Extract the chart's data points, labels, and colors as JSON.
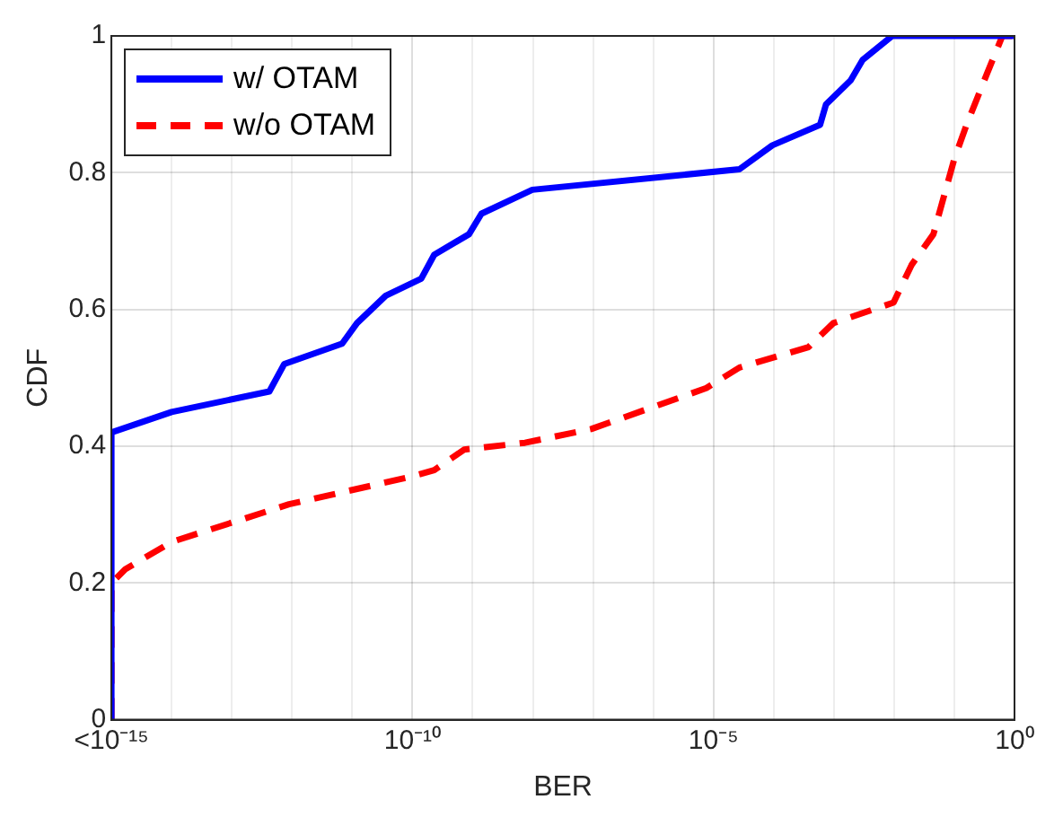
{
  "chart_data": {
    "type": "line",
    "xlabel": "BER",
    "ylabel": "CDF",
    "log": "x",
    "grid": true,
    "legend": "top left",
    "marker": "none",
    "xlim": [
      1e-15,
      1
    ],
    "ylim": [
      0,
      1
    ],
    "xticks": [
      {
        "value": 1e-15,
        "label": "<10⁻¹⁵"
      },
      {
        "value": 1e-14,
        "label": null
      },
      {
        "value": 1e-13,
        "label": null
      },
      {
        "value": 1e-12,
        "label": null
      },
      {
        "value": 1e-11,
        "label": null
      },
      {
        "value": 1e-10,
        "label": "10⁻¹⁰"
      },
      {
        "value": 1e-09,
        "label": null
      },
      {
        "value": 1e-08,
        "label": null
      },
      {
        "value": 1e-07,
        "label": null
      },
      {
        "value": 1e-06,
        "label": null
      },
      {
        "value": 1e-05,
        "label": "10⁻⁵"
      },
      {
        "value": 0.0001,
        "label": null
      },
      {
        "value": 0.001,
        "label": null
      },
      {
        "value": 0.01,
        "label": null
      },
      {
        "value": 0.1,
        "label": null
      },
      {
        "value": 1,
        "label": "10⁰"
      }
    ],
    "yticks": [
      0,
      0.2,
      0.4,
      0.6,
      0.8,
      1
    ],
    "series": [
      {
        "name": "w/ OTAM",
        "color": "#0000ff",
        "line_style": "solid",
        "x": [
          1e-15,
          1e-15,
          1e-14,
          4.2e-13,
          7.4e-13,
          6.8e-12,
          1.2e-11,
          3.6e-11,
          1.4e-10,
          2.3e-10,
          8.7e-10,
          1.4e-09,
          9.8e-09,
          2.7e-05,
          9.5e-05,
          0.00059,
          0.00074,
          0.0019,
          0.003,
          0.0093,
          1
        ],
        "values": [
          0,
          0.42,
          0.45,
          0.48,
          0.52,
          0.55,
          0.58,
          0.62,
          0.645,
          0.68,
          0.71,
          0.74,
          0.775,
          0.805,
          0.84,
          0.87,
          0.9,
          0.935,
          0.965,
          1,
          1
        ]
      },
      {
        "name": "w/o OTAM",
        "color": "#ff0000",
        "line_style": "dashed",
        "x": [
          1e-15,
          1e-15,
          1.7e-15,
          1e-14,
          8.9e-13,
          9.1e-11,
          2.3e-10,
          7.2e-10,
          7.4e-09,
          9.3e-08,
          7.6e-06,
          2.7e-05,
          0.00038,
          0.00098,
          0.0098,
          0.0195,
          0.045,
          0.1,
          0.16,
          0.35,
          0.63,
          1
        ],
        "values": [
          0,
          0.2,
          0.22,
          0.26,
          0.315,
          0.355,
          0.365,
          0.395,
          0.405,
          0.425,
          0.485,
          0.515,
          0.545,
          0.58,
          0.61,
          0.665,
          0.71,
          0.82,
          0.87,
          0.945,
          1,
          1
        ]
      }
    ]
  }
}
